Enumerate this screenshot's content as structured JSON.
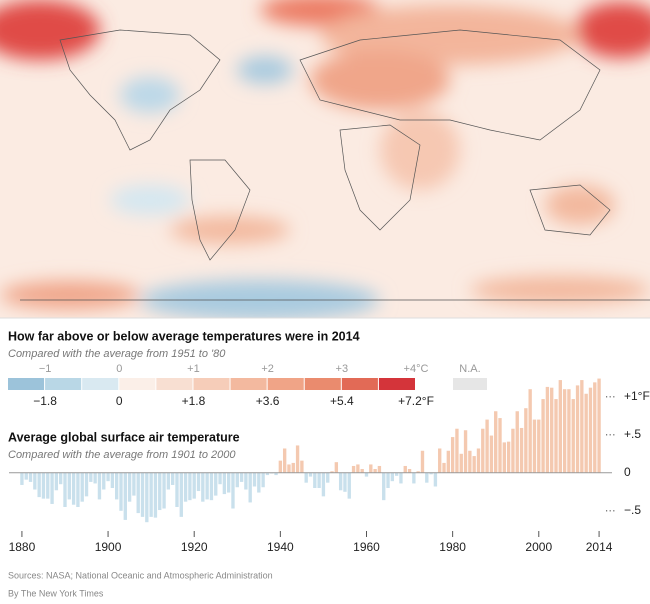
{
  "chart_data": [
    {
      "type": "colorscale",
      "title": "How far above or below average temperatures were in 2014",
      "subtitle": "Compared with the average from 1951 to '80",
      "bins": [
        -1.5,
        -1,
        -0.5,
        0,
        0.5,
        1,
        1.5,
        2,
        2.5,
        3,
        3.5,
        4
      ],
      "colors": [
        "#9cc3da",
        "#b9d7e6",
        "#d9e9f1",
        "#fbefe8",
        "#f8dfd2",
        "#f6cdb9",
        "#f3b99f",
        "#f0a487",
        "#ea8b6e",
        "#e26a56",
        "#d4343a"
      ],
      "xticks": [
        {
          "value": -1,
          "label": "−1"
        },
        0,
        {
          "value": 1,
          "label": "+1"
        },
        {
          "value": 2,
          "label": "+2"
        },
        {
          "value": 3,
          "label": "+3"
        },
        {
          "value": 4,
          "label": "+4°C"
        }
      ],
      "xlim_f": [
        -2.7,
        7.2
      ],
      "xticks_f": [
        {
          "value": -1.8,
          "label": "−1.8"
        },
        0,
        {
          "value": 1.8,
          "label": "+1.8"
        },
        {
          "value": 3.6,
          "label": "+3.6"
        },
        {
          "value": 5.4,
          "label": "+5.4"
        },
        {
          "value": 7.2,
          "label": "+7.2°F"
        }
      ],
      "na_label": "N.A.",
      "na_color": "#e6e6e6"
    },
    {
      "type": "bar",
      "title": "Average global surface air temperature",
      "subtitle": "Compared with the average from 1901 to 2000",
      "x": [
        1880,
        1881,
        1882,
        1883,
        1884,
        1885,
        1886,
        1887,
        1888,
        1889,
        1890,
        1891,
        1892,
        1893,
        1894,
        1895,
        1896,
        1897,
        1898,
        1899,
        1900,
        1901,
        1902,
        1903,
        1904,
        1905,
        1906,
        1907,
        1908,
        1909,
        1910,
        1911,
        1912,
        1913,
        1914,
        1915,
        1916,
        1917,
        1918,
        1919,
        1920,
        1921,
        1922,
        1923,
        1924,
        1925,
        1926,
        1927,
        1928,
        1929,
        1930,
        1931,
        1932,
        1933,
        1934,
        1935,
        1936,
        1937,
        1938,
        1939,
        1940,
        1941,
        1942,
        1943,
        1944,
        1945,
        1946,
        1947,
        1948,
        1949,
        1950,
        1951,
        1952,
        1953,
        1954,
        1955,
        1956,
        1957,
        1958,
        1959,
        1960,
        1961,
        1962,
        1963,
        1964,
        1965,
        1966,
        1967,
        1968,
        1969,
        1970,
        1971,
        1972,
        1973,
        1974,
        1975,
        1976,
        1977,
        1978,
        1979,
        1980,
        1981,
        1982,
        1983,
        1984,
        1985,
        1986,
        1987,
        1988,
        1989,
        1990,
        1991,
        1992,
        1993,
        1994,
        1995,
        1996,
        1997,
        1998,
        1999,
        2000,
        2001,
        2002,
        2003,
        2004,
        2005,
        2006,
        2007,
        2008,
        2009,
        2010,
        2011,
        2012,
        2013,
        2014
      ],
      "values": [
        -0.16,
        -0.09,
        -0.12,
        -0.22,
        -0.32,
        -0.34,
        -0.34,
        -0.41,
        -0.23,
        -0.15,
        -0.45,
        -0.35,
        -0.42,
        -0.45,
        -0.38,
        -0.31,
        -0.12,
        -0.14,
        -0.35,
        -0.22,
        -0.11,
        -0.2,
        -0.35,
        -0.5,
        -0.62,
        -0.38,
        -0.3,
        -0.53,
        -0.58,
        -0.65,
        -0.58,
        -0.59,
        -0.49,
        -0.47,
        -0.22,
        -0.16,
        -0.45,
        -0.58,
        -0.38,
        -0.36,
        -0.34,
        -0.24,
        -0.38,
        -0.35,
        -0.36,
        -0.3,
        -0.15,
        -0.28,
        -0.26,
        -0.47,
        -0.19,
        -0.12,
        -0.22,
        -0.39,
        -0.18,
        -0.26,
        -0.19,
        -0.03,
        -0.01,
        -0.03,
        0.16,
        0.32,
        0.11,
        0.13,
        0.36,
        0.16,
        -0.13,
        -0.05,
        -0.2,
        -0.2,
        -0.31,
        -0.13,
        0.02,
        0.14,
        -0.23,
        -0.25,
        -0.34,
        0.09,
        0.11,
        0.05,
        -0.05,
        0.11,
        0.05,
        0.09,
        -0.36,
        -0.2,
        -0.11,
        -0.04,
        -0.14,
        0.09,
        0.05,
        -0.14,
        0.02,
        0.29,
        -0.13,
        -0.02,
        -0.18,
        0.32,
        0.13,
        0.29,
        0.47,
        0.58,
        0.25,
        0.56,
        0.29,
        0.22,
        0.32,
        0.58,
        0.7,
        0.49,
        0.81,
        0.72,
        0.4,
        0.41,
        0.58,
        0.81,
        0.59,
        0.85,
        1.1,
        0.7,
        0.7,
        0.97,
        1.13,
        1.12,
        0.97,
        1.22,
        1.1,
        1.1,
        0.97,
        1.15,
        1.22,
        1.04,
        1.12,
        1.19,
        1.24
      ],
      "color_positive": "#f4c9b0",
      "color_negative": "#c9e0ec",
      "xlim": [
        1877,
        2017
      ],
      "xticks": [
        1880,
        1900,
        1920,
        1940,
        1960,
        1980,
        2000,
        2014
      ],
      "ylim": [
        -0.7,
        1.3
      ],
      "yticks": [
        {
          "value": 1,
          "label": "+1°F"
        },
        {
          "value": 0.5,
          "label": "+.5"
        },
        0,
        {
          "value": -0.5,
          "label": "−.5"
        }
      ]
    }
  ],
  "footer": {
    "source": "Sources: NASA; National Oceanic and Atmospheric Administration",
    "credit": "By The New York Times"
  }
}
